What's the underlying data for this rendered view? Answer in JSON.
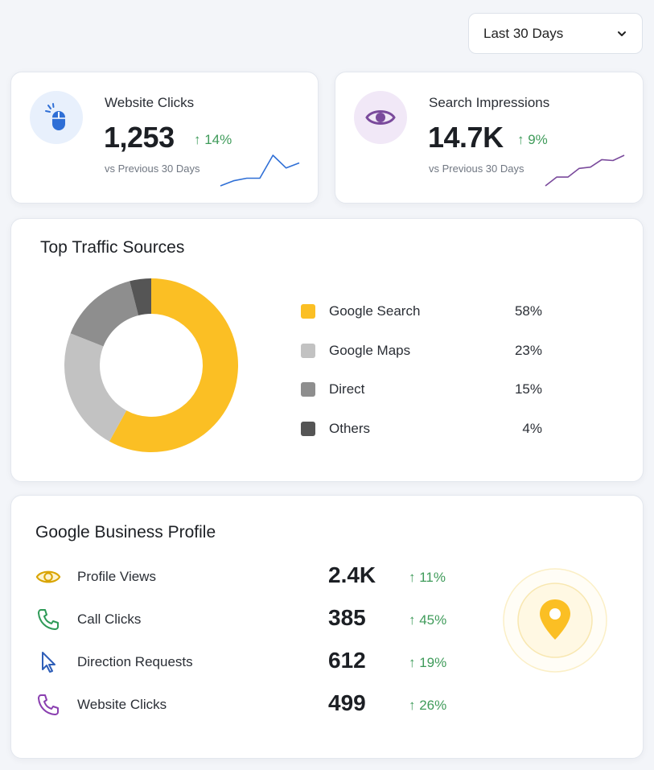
{
  "date_range": {
    "selected": "Last 30 Days"
  },
  "kpis": [
    {
      "title": "Website Clicks",
      "value": "1,253",
      "change": "↑ 14%",
      "subtitle": "vs Previous 30 Days",
      "icon": "mouse-icon",
      "accent": "#2f6fd6",
      "icon_bg": "#e8f0fc",
      "trend": [
        2,
        3,
        3.5,
        3.5,
        8,
        5.5,
        6.5
      ]
    },
    {
      "title": "Search Impressions",
      "value": "14.7K",
      "change": "↑ 9%",
      "subtitle": "vs Previous 30 Days",
      "icon": "eye-icon",
      "accent": "#7a4a9c",
      "icon_bg": "#f1e8f7",
      "trend": [
        1,
        3,
        3,
        5,
        5.3,
        7,
        6.8,
        8
      ]
    }
  ],
  "traffic": {
    "title": "Top Traffic Sources",
    "chart_data": {
      "type": "pie",
      "categories": [
        "Google Search",
        "Google Maps",
        "Direct",
        "Others"
      ],
      "values": [
        58,
        23,
        15,
        4
      ],
      "colors": [
        "#fbbf24",
        "#c2c2c2",
        "#8e8e8e",
        "#555555"
      ]
    },
    "legend": [
      {
        "label": "Google Search",
        "pct": "58%"
      },
      {
        "label": "Google Maps",
        "pct": "23%"
      },
      {
        "label": "Direct",
        "pct": "15%"
      },
      {
        "label": "Others",
        "pct": "4%"
      }
    ]
  },
  "gbp": {
    "title": "Google Business Profile",
    "rows": [
      {
        "label": "Profile Views",
        "value": "2.4K",
        "change": "↑ 11%",
        "icon": "eye-icon",
        "color": "#d9a400"
      },
      {
        "label": "Call Clicks",
        "value": "385",
        "change": "↑ 45%",
        "icon": "phone-icon",
        "color": "#2e9a57"
      },
      {
        "label": "Direction Requests",
        "value": "612",
        "change": "↑ 19%",
        "icon": "cursor-icon",
        "color": "#2f5fb8"
      },
      {
        "label": "Website Clicks",
        "value": "499",
        "change": "↑ 26%",
        "icon": "phone-icon",
        "color": "#8a3fb0"
      }
    ],
    "badge_icon": "map-pin-icon",
    "badge_color": "#fbbf24"
  }
}
